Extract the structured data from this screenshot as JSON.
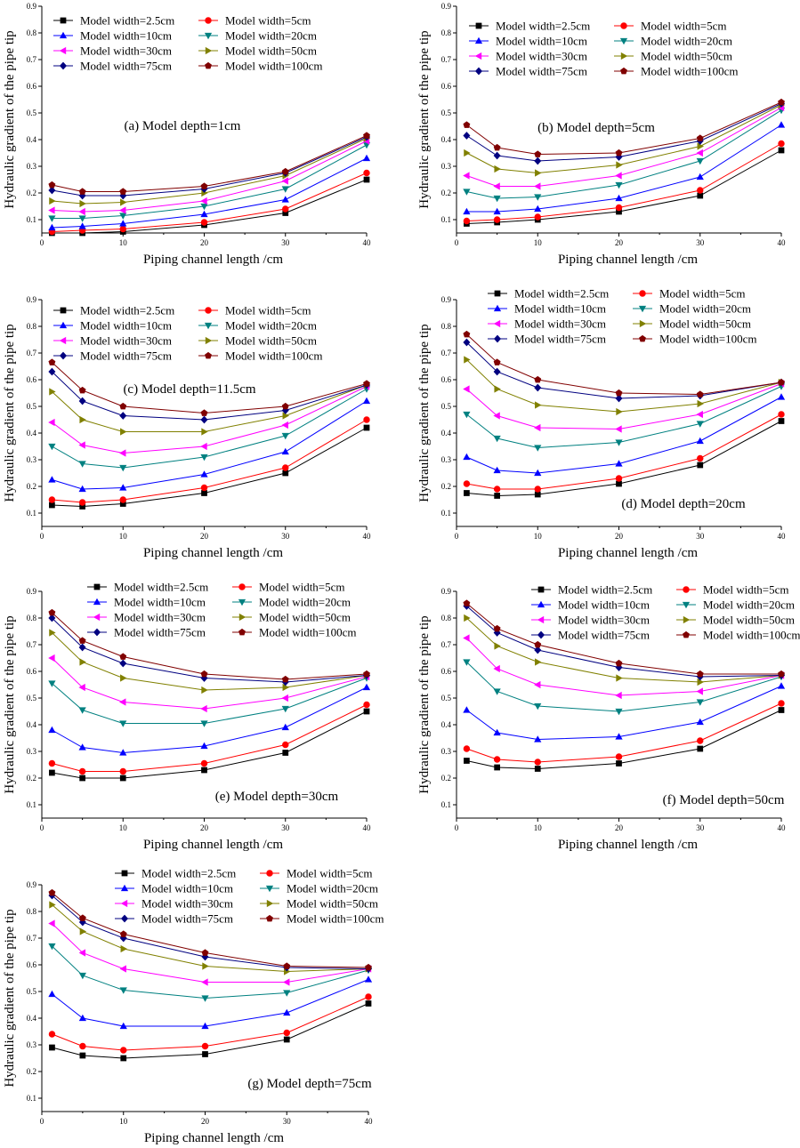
{
  "chart_data": [
    {
      "type": "line",
      "title": "(a) Model depth=1cm",
      "xlabel": "Piping channel length /cm",
      "ylabel": "Hydraulic gradient of the pipe tip",
      "x": [
        1.25,
        5,
        10,
        20,
        30,
        40
      ],
      "xlim": [
        0,
        40
      ],
      "ylim": [
        0.05,
        0.9
      ],
      "xticks": [
        "0",
        "10",
        "20",
        "30",
        "40"
      ],
      "yticks": [
        "0.1",
        "0.2",
        "0.3",
        "0.4",
        "0.5",
        "0.6",
        "0.7",
        "0.8",
        "0.9"
      ],
      "legend_position": "top-left",
      "series": [
        {
          "name": "Model width=2.5cm",
          "values": [
            0.05,
            0.05,
            0.055,
            0.08,
            0.125,
            0.25
          ]
        },
        {
          "name": "Model width=5cm",
          "values": [
            0.055,
            0.06,
            0.065,
            0.09,
            0.14,
            0.275
          ]
        },
        {
          "name": "Model width=10cm",
          "values": [
            0.07,
            0.075,
            0.085,
            0.12,
            0.175,
            0.33
          ]
        },
        {
          "name": "Model width=20cm",
          "values": [
            0.105,
            0.105,
            0.115,
            0.15,
            0.215,
            0.38
          ]
        },
        {
          "name": "Model width=30cm",
          "values": [
            0.135,
            0.13,
            0.135,
            0.17,
            0.245,
            0.395
          ]
        },
        {
          "name": "Model width=50cm",
          "values": [
            0.17,
            0.16,
            0.165,
            0.2,
            0.265,
            0.405
          ]
        },
        {
          "name": "Model width=75cm",
          "values": [
            0.21,
            0.19,
            0.19,
            0.215,
            0.275,
            0.41
          ]
        },
        {
          "name": "Model width=100cm",
          "values": [
            0.23,
            0.205,
            0.205,
            0.225,
            0.28,
            0.415
          ]
        }
      ]
    },
    {
      "type": "line",
      "title": "(b) Model depth=5cm",
      "xlabel": "Piping channel length /cm",
      "ylabel": "Hydraulic gradient of the pipe tip",
      "x": [
        1.25,
        5,
        10,
        20,
        30,
        40
      ],
      "xlim": [
        0,
        40
      ],
      "ylim": [
        0.05,
        0.9
      ],
      "xticks": [
        "0",
        "10",
        "20",
        "30",
        "40"
      ],
      "yticks": [
        "0.1",
        "0.2",
        "0.3",
        "0.4",
        "0.5",
        "0.6",
        "0.7",
        "0.8",
        "0.9"
      ],
      "legend_position": "top-left",
      "series": [
        {
          "name": "Model width=2.5cm",
          "values": [
            0.085,
            0.09,
            0.1,
            0.13,
            0.19,
            0.36
          ]
        },
        {
          "name": "Model width=5cm",
          "values": [
            0.095,
            0.1,
            0.11,
            0.145,
            0.21,
            0.385
          ]
        },
        {
          "name": "Model width=10cm",
          "values": [
            0.13,
            0.13,
            0.14,
            0.18,
            0.26,
            0.455
          ]
        },
        {
          "name": "Model width=20cm",
          "values": [
            0.205,
            0.18,
            0.185,
            0.23,
            0.32,
            0.51
          ]
        },
        {
          "name": "Model width=30cm",
          "values": [
            0.265,
            0.225,
            0.225,
            0.265,
            0.35,
            0.52
          ]
        },
        {
          "name": "Model width=50cm",
          "values": [
            0.35,
            0.29,
            0.275,
            0.305,
            0.375,
            0.53
          ]
        },
        {
          "name": "Model width=75cm",
          "values": [
            0.415,
            0.34,
            0.32,
            0.335,
            0.395,
            0.535
          ]
        },
        {
          "name": "Model width=100cm",
          "values": [
            0.455,
            0.37,
            0.345,
            0.35,
            0.405,
            0.54
          ]
        }
      ]
    },
    {
      "type": "line",
      "title": "(c) Model depth=11.5cm",
      "xlabel": "Piping channel length /cm",
      "ylabel": "Hydraulic gradient of the pipe tip",
      "x": [
        1.25,
        5,
        10,
        20,
        30,
        40
      ],
      "xlim": [
        0,
        40
      ],
      "ylim": [
        0.05,
        0.9
      ],
      "xticks": [
        "0",
        "10",
        "20",
        "30",
        "40"
      ],
      "yticks": [
        "0.1",
        "0.2",
        "0.3",
        "0.4",
        "0.5",
        "0.6",
        "0.7",
        "0.8",
        "0.9"
      ],
      "legend_position": "top-left",
      "series": [
        {
          "name": "Model width=2.5cm",
          "values": [
            0.13,
            0.125,
            0.135,
            0.175,
            0.25,
            0.42
          ]
        },
        {
          "name": "Model width=5cm",
          "values": [
            0.15,
            0.14,
            0.15,
            0.195,
            0.27,
            0.45
          ]
        },
        {
          "name": "Model width=10cm",
          "values": [
            0.225,
            0.19,
            0.195,
            0.245,
            0.33,
            0.52
          ]
        },
        {
          "name": "Model width=20cm",
          "values": [
            0.35,
            0.285,
            0.27,
            0.31,
            0.39,
            0.565
          ]
        },
        {
          "name": "Model width=30cm",
          "values": [
            0.44,
            0.355,
            0.325,
            0.35,
            0.43,
            0.575
          ]
        },
        {
          "name": "Model width=50cm",
          "values": [
            0.555,
            0.45,
            0.405,
            0.405,
            0.465,
            0.58
          ]
        },
        {
          "name": "Model width=75cm",
          "values": [
            0.63,
            0.52,
            0.465,
            0.45,
            0.485,
            0.58
          ]
        },
        {
          "name": "Model width=100cm",
          "values": [
            0.665,
            0.56,
            0.5,
            0.475,
            0.5,
            0.585
          ]
        }
      ]
    },
    {
      "type": "line",
      "title": "(d) Model depth=20cm",
      "xlabel": "Piping channel length /cm",
      "ylabel": "Hydraulic gradient of the pipe tip",
      "x": [
        1.25,
        5,
        10,
        20,
        30,
        40
      ],
      "xlim": [
        0,
        40
      ],
      "ylim": [
        0.05,
        0.9
      ],
      "xticks": [
        "0",
        "10",
        "20",
        "30",
        "40"
      ],
      "yticks": [
        "0.1",
        "0.2",
        "0.3",
        "0.4",
        "0.5",
        "0.6",
        "0.7",
        "0.8",
        "0.9"
      ],
      "legend_position": "top-left",
      "series": [
        {
          "name": "Model width=2.5cm",
          "values": [
            0.175,
            0.165,
            0.17,
            0.21,
            0.28,
            0.445
          ]
        },
        {
          "name": "Model width=5cm",
          "values": [
            0.21,
            0.19,
            0.19,
            0.23,
            0.305,
            0.47
          ]
        },
        {
          "name": "Model width=10cm",
          "values": [
            0.31,
            0.26,
            0.25,
            0.285,
            0.37,
            0.535
          ]
        },
        {
          "name": "Model width=20cm",
          "values": [
            0.47,
            0.38,
            0.345,
            0.365,
            0.435,
            0.575
          ]
        },
        {
          "name": "Model width=30cm",
          "values": [
            0.565,
            0.465,
            0.42,
            0.415,
            0.47,
            0.585
          ]
        },
        {
          "name": "Model width=50cm",
          "values": [
            0.675,
            0.565,
            0.505,
            0.48,
            0.51,
            0.59
          ]
        },
        {
          "name": "Model width=75cm",
          "values": [
            0.74,
            0.63,
            0.57,
            0.53,
            0.54,
            0.59
          ]
        },
        {
          "name": "Model width=100cm",
          "values": [
            0.77,
            0.665,
            0.6,
            0.55,
            0.545,
            0.59
          ]
        }
      ]
    },
    {
      "type": "line",
      "title": "(e) Model depth=30cm",
      "xlabel": "Piping channel length /cm",
      "ylabel": "Hydraulic gradient of the pipe tip",
      "x": [
        1.25,
        5,
        10,
        20,
        30,
        40
      ],
      "xlim": [
        0,
        40
      ],
      "ylim": [
        0.05,
        0.9
      ],
      "xticks": [
        "0",
        "10",
        "20",
        "30",
        "40"
      ],
      "yticks": [
        "0.1",
        "0.2",
        "0.3",
        "0.4",
        "0.5",
        "0.6",
        "0.7",
        "0.8",
        "0.9"
      ],
      "legend_position": "top-left",
      "series": [
        {
          "name": "Model width=2.5cm",
          "values": [
            0.22,
            0.2,
            0.2,
            0.23,
            0.295,
            0.45
          ]
        },
        {
          "name": "Model width=5cm",
          "values": [
            0.255,
            0.225,
            0.225,
            0.255,
            0.325,
            0.475
          ]
        },
        {
          "name": "Model width=10cm",
          "values": [
            0.38,
            0.315,
            0.295,
            0.32,
            0.39,
            0.54
          ]
        },
        {
          "name": "Model width=20cm",
          "values": [
            0.555,
            0.455,
            0.405,
            0.405,
            0.46,
            0.575
          ]
        },
        {
          "name": "Model width=30cm",
          "values": [
            0.65,
            0.54,
            0.485,
            0.46,
            0.5,
            0.58
          ]
        },
        {
          "name": "Model width=50cm",
          "values": [
            0.745,
            0.635,
            0.575,
            0.53,
            0.54,
            0.585
          ]
        },
        {
          "name": "Model width=75cm",
          "values": [
            0.8,
            0.69,
            0.63,
            0.575,
            0.56,
            0.585
          ]
        },
        {
          "name": "Model width=100cm",
          "values": [
            0.82,
            0.715,
            0.655,
            0.59,
            0.57,
            0.59
          ]
        }
      ]
    },
    {
      "type": "line",
      "title": "(f) Model depth=50cm",
      "xlabel": "Piping channel length /cm",
      "ylabel": "Hydraulic gradient of the pipe tip",
      "x": [
        1.25,
        5,
        10,
        20,
        30,
        40
      ],
      "xlim": [
        0,
        40
      ],
      "ylim": [
        0.05,
        0.9
      ],
      "xticks": [
        "0",
        "10",
        "20",
        "30",
        "40"
      ],
      "yticks": [
        "0.1",
        "0.2",
        "0.3",
        "0.4",
        "0.5",
        "0.6",
        "0.7",
        "0.8",
        "0.9"
      ],
      "legend_position": "top-right",
      "series": [
        {
          "name": "Model width=2.5cm",
          "values": [
            0.265,
            0.24,
            0.235,
            0.255,
            0.31,
            0.455
          ]
        },
        {
          "name": "Model width=5cm",
          "values": [
            0.31,
            0.27,
            0.26,
            0.28,
            0.34,
            0.48
          ]
        },
        {
          "name": "Model width=10cm",
          "values": [
            0.455,
            0.37,
            0.345,
            0.355,
            0.41,
            0.545
          ]
        },
        {
          "name": "Model width=20cm",
          "values": [
            0.635,
            0.525,
            0.47,
            0.45,
            0.485,
            0.58
          ]
        },
        {
          "name": "Model width=30cm",
          "values": [
            0.725,
            0.61,
            0.55,
            0.51,
            0.525,
            0.585
          ]
        },
        {
          "name": "Model width=50cm",
          "values": [
            0.8,
            0.695,
            0.635,
            0.575,
            0.56,
            0.585
          ]
        },
        {
          "name": "Model width=75cm",
          "values": [
            0.845,
            0.745,
            0.68,
            0.615,
            0.58,
            0.585
          ]
        },
        {
          "name": "Model width=100cm",
          "values": [
            0.855,
            0.76,
            0.7,
            0.63,
            0.59,
            0.59
          ]
        }
      ]
    },
    {
      "type": "line",
      "title": "(g) Model depth=75cm",
      "xlabel": "Piping channel length /cm",
      "ylabel": "Hydraulic gradient of the pipe tip",
      "x": [
        1.25,
        5,
        10,
        20,
        30,
        40
      ],
      "xlim": [
        0,
        40
      ],
      "ylim": [
        0.05,
        0.9
      ],
      "xticks": [
        "0",
        "10",
        "20",
        "30",
        "40"
      ],
      "yticks": [
        "0.1",
        "0.2",
        "0.3",
        "0.4",
        "0.5",
        "0.6",
        "0.7",
        "0.8",
        "0.9"
      ],
      "legend_position": "top-right",
      "series": [
        {
          "name": "Model width=2.5cm",
          "values": [
            0.29,
            0.26,
            0.25,
            0.265,
            0.32,
            0.455
          ]
        },
        {
          "name": "Model width=5cm",
          "values": [
            0.34,
            0.295,
            0.28,
            0.295,
            0.345,
            0.48
          ]
        },
        {
          "name": "Model width=10cm",
          "values": [
            0.49,
            0.4,
            0.37,
            0.37,
            0.42,
            0.545
          ]
        },
        {
          "name": "Model width=20cm",
          "values": [
            0.67,
            0.56,
            0.505,
            0.475,
            0.495,
            0.58
          ]
        },
        {
          "name": "Model width=30cm",
          "values": [
            0.755,
            0.645,
            0.585,
            0.535,
            0.535,
            0.585
          ]
        },
        {
          "name": "Model width=50cm",
          "values": [
            0.825,
            0.725,
            0.66,
            0.595,
            0.575,
            0.585
          ]
        },
        {
          "name": "Model width=75cm",
          "values": [
            0.86,
            0.76,
            0.7,
            0.63,
            0.59,
            0.585
          ]
        },
        {
          "name": "Model width=100cm",
          "values": [
            0.87,
            0.775,
            0.715,
            0.645,
            0.595,
            0.59
          ]
        }
      ]
    }
  ],
  "styles": {
    "series": [
      {
        "color": "#000000",
        "marker": "square"
      },
      {
        "color": "#ff0000",
        "marker": "circle"
      },
      {
        "color": "#0000ff",
        "marker": "triangle-up"
      },
      {
        "color": "#008080",
        "marker": "triangle-down"
      },
      {
        "color": "#ff00ff",
        "marker": "triangle-left"
      },
      {
        "color": "#808000",
        "marker": "triangle-right"
      },
      {
        "color": "#000080",
        "marker": "diamond"
      },
      {
        "color": "#800000",
        "marker": "pentagon"
      }
    ]
  }
}
